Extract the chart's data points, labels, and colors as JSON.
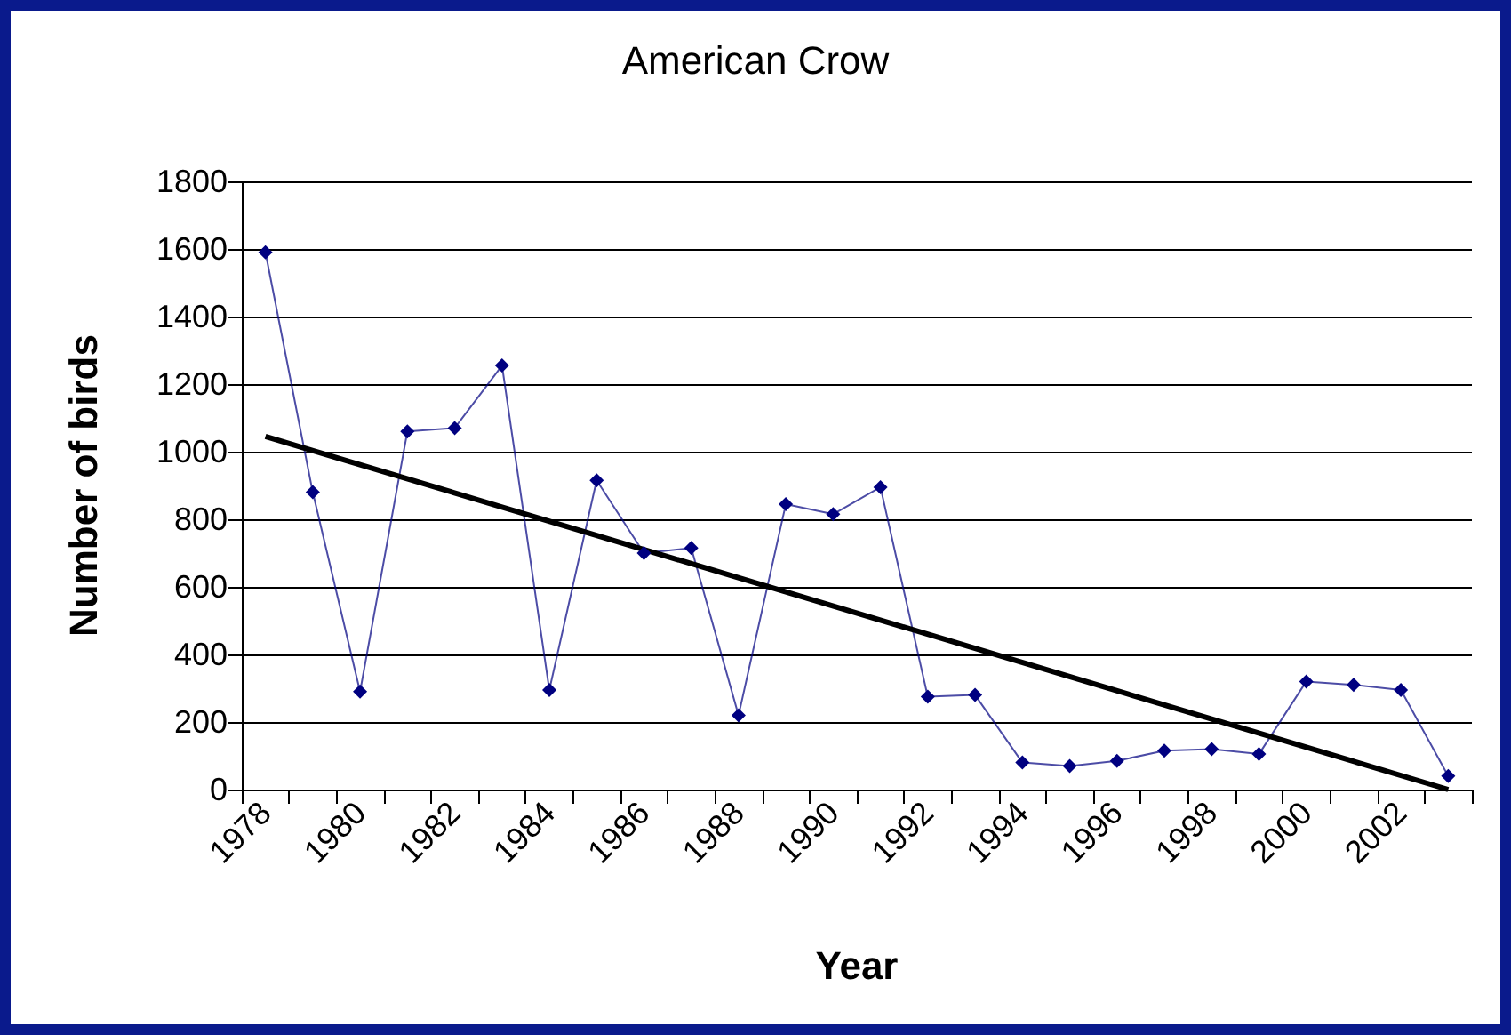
{
  "chart_data": {
    "type": "line",
    "title": "American Crow",
    "xlabel": "Year",
    "ylabel": "Number of birds",
    "categories": [
      "1978",
      null,
      "1980",
      null,
      "1982",
      null,
      "1984",
      null,
      "1986",
      null,
      "1988",
      null,
      "1990",
      null,
      "1992",
      null,
      "1994",
      null,
      "1996",
      null,
      "1998",
      null,
      "2000",
      null,
      "2002",
      null
    ],
    "series": [
      {
        "color": "#000080",
        "marker": "diamond",
        "values": [
          1590,
          880,
          290,
          1060,
          1070,
          1255,
          295,
          915,
          700,
          715,
          220,
          845,
          815,
          895,
          275,
          280,
          80,
          70,
          85,
          115,
          120,
          105,
          320,
          310,
          295,
          40
        ]
      },
      {
        "color": "#000000",
        "marker": "none",
        "values": [
          1045,
          null,
          null,
          null,
          null,
          null,
          null,
          null,
          null,
          null,
          null,
          null,
          null,
          null,
          null,
          null,
          null,
          null,
          null,
          null,
          null,
          null,
          null,
          null,
          null,
          0
        ]
      }
    ],
    "ylim": [
      0,
      1800
    ],
    "yticks": [
      0,
      200,
      400,
      600,
      800,
      1000,
      1200,
      1400,
      1600,
      1800
    ],
    "grid": "y"
  }
}
